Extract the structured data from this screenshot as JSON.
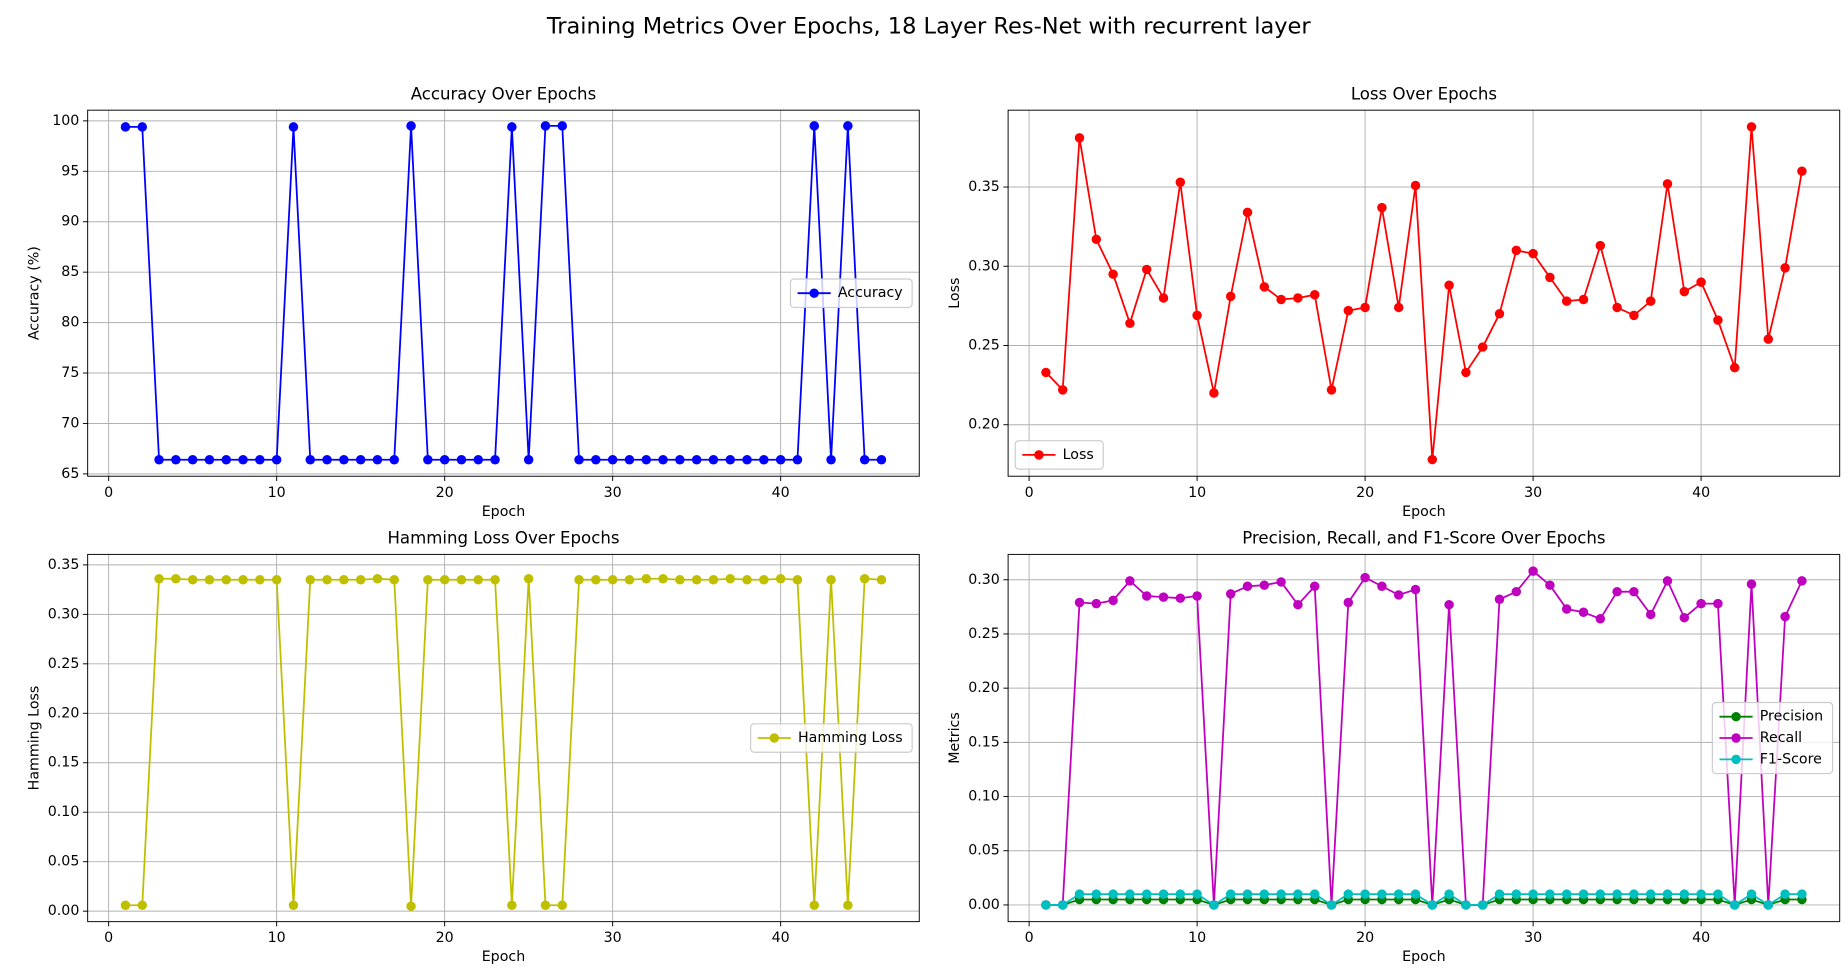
{
  "title": "Training Metrics Over Epochs, 18 Layer Res-Net with recurrent layer",
  "chart_data": [
    {
      "type": "line",
      "title": "Accuracy Over Epochs",
      "xlabel": "Epoch",
      "ylabel": "Accuracy (%)",
      "x": [
        1,
        2,
        3,
        4,
        5,
        6,
        7,
        8,
        9,
        10,
        11,
        12,
        13,
        14,
        15,
        16,
        17,
        18,
        19,
        20,
        21,
        22,
        23,
        24,
        25,
        26,
        27,
        28,
        29,
        30,
        31,
        32,
        33,
        34,
        35,
        36,
        37,
        38,
        39,
        40,
        41,
        42,
        43,
        44,
        45,
        46
      ],
      "xlim": [
        -1.25,
        48.25
      ],
      "xticks": [
        0,
        10,
        20,
        30,
        40
      ],
      "ylim": [
        64.77,
        101.06
      ],
      "yticks": [
        65,
        70,
        75,
        80,
        85,
        90,
        95,
        100
      ],
      "grid": true,
      "legend": "center right",
      "series": [
        {
          "name": "Accuracy",
          "color": "#0000ff",
          "values": [
            99.4,
            99.4,
            66.4,
            66.4,
            66.4,
            66.4,
            66.4,
            66.4,
            66.4,
            66.4,
            99.4,
            66.4,
            66.4,
            66.4,
            66.4,
            66.4,
            66.4,
            99.5,
            66.4,
            66.4,
            66.4,
            66.4,
            66.4,
            99.4,
            66.4,
            99.5,
            99.5,
            66.4,
            66.4,
            66.4,
            66.4,
            66.4,
            66.4,
            66.4,
            66.4,
            66.4,
            66.4,
            66.4,
            66.4,
            66.4,
            66.4,
            99.5,
            66.4,
            99.5,
            66.4,
            66.4
          ]
        }
      ]
    },
    {
      "type": "line",
      "title": "Loss Over Epochs",
      "xlabel": "Epoch",
      "ylabel": "Loss",
      "x": [
        1,
        2,
        3,
        4,
        5,
        6,
        7,
        8,
        9,
        10,
        11,
        12,
        13,
        14,
        15,
        16,
        17,
        18,
        19,
        20,
        21,
        22,
        23,
        24,
        25,
        26,
        27,
        28,
        29,
        30,
        31,
        32,
        33,
        34,
        35,
        36,
        37,
        38,
        39,
        40,
        41,
        42,
        43,
        44,
        45,
        46
      ],
      "xlim": [
        -1.25,
        48.25
      ],
      "xticks": [
        0,
        10,
        20,
        30,
        40
      ],
      "ylim": [
        0.1675,
        0.3985
      ],
      "yticks": [
        {
          "value": 0.2,
          "label": "0.20"
        },
        0.25,
        {
          "value": 0.3,
          "label": "0.30"
        },
        0.35
      ],
      "grid": true,
      "legend": "lower left",
      "series": [
        {
          "name": "Loss",
          "color": "#ff0000",
          "values": [
            0.233,
            0.222,
            0.381,
            0.317,
            0.295,
            0.264,
            0.298,
            0.28,
            0.353,
            0.269,
            0.22,
            0.281,
            0.334,
            0.287,
            0.279,
            0.28,
            0.282,
            0.222,
            0.272,
            0.274,
            0.337,
            0.274,
            0.351,
            0.178,
            0.288,
            0.233,
            0.249,
            0.27,
            0.31,
            0.308,
            0.293,
            0.278,
            0.279,
            0.313,
            0.274,
            0.269,
            0.278,
            0.352,
            0.284,
            0.29,
            0.266,
            0.236,
            0.388,
            0.254,
            0.299,
            0.36
          ]
        }
      ]
    },
    {
      "type": "line",
      "title": "Hamming Loss Over Epochs",
      "xlabel": "Epoch",
      "ylabel": "Hamming Loss",
      "x": [
        1,
        2,
        3,
        4,
        5,
        6,
        7,
        8,
        9,
        10,
        11,
        12,
        13,
        14,
        15,
        16,
        17,
        18,
        19,
        20,
        21,
        22,
        23,
        24,
        25,
        26,
        27,
        28,
        29,
        30,
        31,
        32,
        33,
        34,
        35,
        36,
        37,
        38,
        39,
        40,
        41,
        42,
        43,
        44,
        45,
        46
      ],
      "xlim": [
        -1.25,
        48.25
      ],
      "xticks": [
        0,
        10,
        20,
        30,
        40
      ],
      "ylim": [
        -0.0106,
        0.3606
      ],
      "yticks": [
        {
          "value": 0,
          "label": "0.00"
        },
        0.05,
        {
          "value": 0.1,
          "label": "0.10"
        },
        0.15,
        {
          "value": 0.2,
          "label": "0.20"
        },
        0.25,
        {
          "value": 0.3,
          "label": "0.30"
        },
        0.35
      ],
      "grid": true,
      "legend": "center right",
      "series": [
        {
          "name": "Hamming Loss",
          "color": "#bfbf00",
          "values": [
            0.006,
            0.006,
            0.336,
            0.336,
            0.335,
            0.335,
            0.335,
            0.335,
            0.335,
            0.335,
            0.006,
            0.335,
            0.335,
            0.335,
            0.335,
            0.336,
            0.335,
            0.005,
            0.335,
            0.335,
            0.335,
            0.335,
            0.335,
            0.006,
            0.336,
            0.006,
            0.006,
            0.335,
            0.335,
            0.335,
            0.335,
            0.336,
            0.336,
            0.335,
            0.335,
            0.335,
            0.336,
            0.335,
            0.335,
            0.336,
            0.335,
            0.006,
            0.335,
            0.006,
            0.336,
            0.335
          ]
        }
      ]
    },
    {
      "type": "line",
      "title": "Precision, Recall, and F1-Score Over Epochs",
      "xlabel": "Epoch",
      "ylabel": "Metrics",
      "x": [
        1,
        2,
        3,
        4,
        5,
        6,
        7,
        8,
        9,
        10,
        11,
        12,
        13,
        14,
        15,
        16,
        17,
        18,
        19,
        20,
        21,
        22,
        23,
        24,
        25,
        26,
        27,
        28,
        29,
        30,
        31,
        32,
        33,
        34,
        35,
        36,
        37,
        38,
        39,
        40,
        41,
        42,
        43,
        44,
        45,
        46
      ],
      "xlim": [
        -1.25,
        48.25
      ],
      "xticks": [
        0,
        10,
        20,
        30,
        40
      ],
      "ylim": [
        -0.0154,
        0.3234
      ],
      "yticks": [
        {
          "value": 0,
          "label": "0.00"
        },
        0.05,
        {
          "value": 0.1,
          "label": "0.10"
        },
        0.15,
        {
          "value": 0.2,
          "label": "0.20"
        },
        0.25,
        {
          "value": 0.3,
          "label": "0.30"
        }
      ],
      "grid": true,
      "legend": "center right",
      "series": [
        {
          "name": "Precision",
          "color": "#008000",
          "values": [
            0,
            0,
            0.005,
            0.005,
            0.005,
            0.005,
            0.005,
            0.005,
            0.005,
            0.005,
            0,
            0.005,
            0.005,
            0.005,
            0.005,
            0.005,
            0.005,
            0,
            0.005,
            0.005,
            0.005,
            0.005,
            0.005,
            0,
            0.005,
            0,
            0,
            0.005,
            0.005,
            0.005,
            0.005,
            0.005,
            0.005,
            0.005,
            0.005,
            0.005,
            0.005,
            0.005,
            0.005,
            0.005,
            0.005,
            0,
            0.005,
            0,
            0.005,
            0.005
          ]
        },
        {
          "name": "Recall",
          "color": "#bf00bf",
          "values": [
            0,
            0,
            0.279,
            0.278,
            0.281,
            0.299,
            0.285,
            0.284,
            0.283,
            0.285,
            0,
            0.287,
            0.294,
            0.295,
            0.298,
            0.277,
            0.294,
            0,
            0.279,
            0.302,
            0.294,
            0.286,
            0.291,
            0,
            0.277,
            0,
            0,
            0.282,
            0.289,
            0.308,
            0.295,
            0.273,
            0.27,
            0.264,
            0.289,
            0.289,
            0.268,
            0.299,
            0.265,
            0.278,
            0.278,
            0,
            0.296,
            0,
            0.266,
            0.299
          ]
        },
        {
          "name": "F1-Score",
          "color": "#00bfbf",
          "values": [
            0,
            0,
            0.01,
            0.01,
            0.01,
            0.01,
            0.01,
            0.01,
            0.01,
            0.01,
            0,
            0.01,
            0.01,
            0.01,
            0.01,
            0.01,
            0.01,
            0,
            0.01,
            0.01,
            0.01,
            0.01,
            0.01,
            0,
            0.01,
            0,
            0,
            0.01,
            0.01,
            0.01,
            0.01,
            0.01,
            0.01,
            0.01,
            0.01,
            0.01,
            0.01,
            0.01,
            0.01,
            0.01,
            0.01,
            0,
            0.01,
            0,
            0.01,
            0.01
          ]
        }
      ]
    }
  ]
}
